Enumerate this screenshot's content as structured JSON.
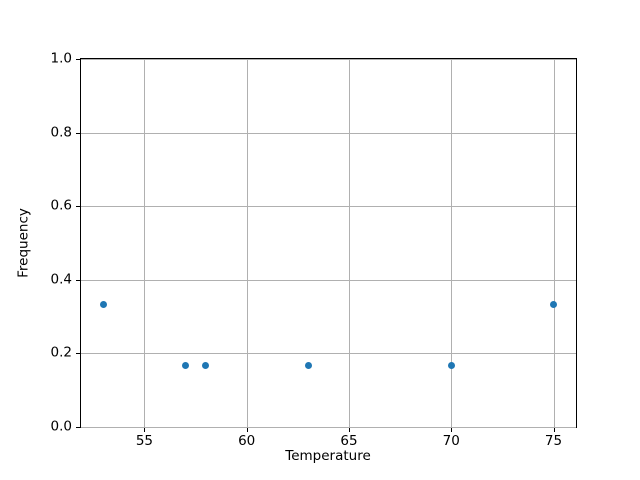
{
  "chart_data": {
    "type": "scatter",
    "title": "",
    "xlabel": "Temperature",
    "ylabel": "Frequency",
    "x": [
      53,
      57,
      58,
      63,
      70,
      75
    ],
    "y": [
      0.333,
      0.167,
      0.167,
      0.167,
      0.167,
      0.333
    ],
    "xlim": [
      51.9,
      76.1
    ],
    "ylim": [
      0.0,
      1.0
    ],
    "xticks": [
      "55",
      "60",
      "65",
      "70",
      "75"
    ],
    "yticks": [
      "0.0",
      "0.2",
      "0.4",
      "0.6",
      "0.8",
      "1.0"
    ],
    "grid": true,
    "legend": "none",
    "colors": {
      "marker": "#1f77b4",
      "grid": "#b0b0b0",
      "spine": "#000000",
      "text": "#000000",
      "background": "#ffffff"
    }
  }
}
